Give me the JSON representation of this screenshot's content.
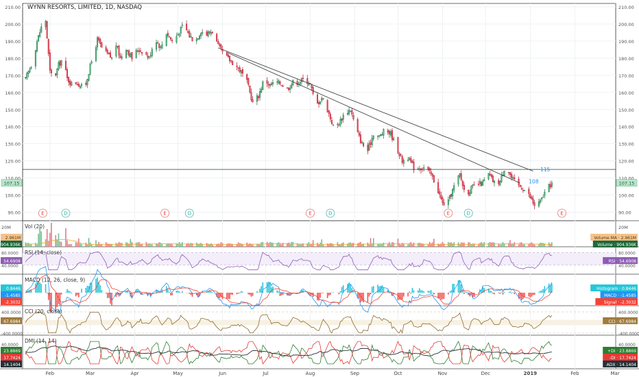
{
  "chart_data": {
    "type": "candlestick",
    "title": "WYNN RESORTS, LIMITED, 1D, NASDAQ",
    "price_axis": {
      "ylim": [
        85,
        212
      ],
      "ticks": [
        90,
        100,
        110,
        120,
        130,
        140,
        150,
        160,
        170,
        180,
        190,
        200,
        210
      ],
      "tick_labels": [
        "90.00",
        "100.00",
        "110.00",
        "120.00",
        "130.00",
        "140.00",
        "150.00",
        "160.00",
        "170.00",
        "180.00",
        "190.00",
        "200.00",
        "210.00"
      ]
    },
    "time_axis": {
      "labels": [
        "Feb",
        "Mar",
        "Apr",
        "May",
        "Jun",
        "Jul",
        "Aug",
        "Sep",
        "Oct",
        "Nov",
        "Dec",
        "2019",
        "Feb",
        "Mar"
      ],
      "label_days": [
        31,
        59,
        90,
        120,
        151,
        181,
        212,
        243,
        273,
        304,
        334,
        365,
        396,
        424
      ]
    },
    "last_price": "107.15",
    "horizontal_line": {
      "value": 115,
      "label": "115"
    },
    "price_marker": {
      "value": 108,
      "label": "108"
    },
    "trendlines": [
      {
        "from": {
          "day": 148,
          "price": 186
        },
        "to": {
          "day": 367,
          "price": 114
        }
      },
      {
        "from": {
          "day": 155,
          "price": 183
        },
        "to": {
          "day": 358,
          "price": 107
        }
      }
    ],
    "events": [
      {
        "type": "E",
        "day": 26
      },
      {
        "type": "D",
        "day": 42
      },
      {
        "type": "E",
        "day": 111
      },
      {
        "type": "D",
        "day": 128
      },
      {
        "type": "E",
        "day": 212
      },
      {
        "type": "D",
        "day": 226
      },
      {
        "type": "E",
        "day": 308
      },
      {
        "type": "D",
        "day": 322
      },
      {
        "type": "E",
        "day": 387
      }
    ],
    "price_path": [
      [
        12,
        163
      ],
      [
        15,
        170
      ],
      [
        19,
        178
      ],
      [
        22,
        190
      ],
      [
        25,
        198
      ],
      [
        28,
        202
      ],
      [
        31,
        172
      ],
      [
        34,
        168
      ],
      [
        37,
        176
      ],
      [
        40,
        180
      ],
      [
        43,
        168
      ],
      [
        46,
        165
      ],
      [
        49,
        166
      ],
      [
        52,
        164
      ],
      [
        55,
        162
      ],
      [
        58,
        172
      ],
      [
        61,
        181
      ],
      [
        64,
        191
      ],
      [
        67,
        186
      ],
      [
        70,
        183
      ],
      [
        74,
        180
      ],
      [
        77,
        188
      ],
      [
        80,
        180
      ],
      [
        84,
        186
      ],
      [
        88,
        180
      ],
      [
        92,
        185
      ],
      [
        96,
        184
      ],
      [
        100,
        180
      ],
      [
        104,
        192
      ],
      [
        108,
        186
      ],
      [
        112,
        195
      ],
      [
        116,
        190
      ],
      [
        120,
        194
      ],
      [
        124,
        200
      ],
      [
        128,
        193
      ],
      [
        132,
        190
      ],
      [
        136,
        196
      ],
      [
        140,
        194
      ],
      [
        144,
        196
      ],
      [
        148,
        187
      ],
      [
        152,
        182
      ],
      [
        156,
        179
      ],
      [
        160,
        176
      ],
      [
        164,
        172
      ],
      [
        168,
        166
      ],
      [
        172,
        154
      ],
      [
        176,
        158
      ],
      [
        180,
        168
      ],
      [
        184,
        164
      ],
      [
        188,
        166
      ],
      [
        192,
        165
      ],
      [
        196,
        162
      ],
      [
        200,
        166
      ],
      [
        204,
        166
      ],
      [
        208,
        168
      ],
      [
        212,
        165
      ],
      [
        216,
        152
      ],
      [
        220,
        157
      ],
      [
        224,
        150
      ],
      [
        228,
        140
      ],
      [
        232,
        142
      ],
      [
        236,
        148
      ],
      [
        240,
        150
      ],
      [
        244,
        138
      ],
      [
        248,
        130
      ],
      [
        252,
        126
      ],
      [
        256,
        136
      ],
      [
        260,
        134
      ],
      [
        264,
        138
      ],
      [
        268,
        136
      ],
      [
        272,
        128
      ],
      [
        276,
        120
      ],
      [
        280,
        122
      ],
      [
        284,
        116
      ],
      [
        288,
        116
      ],
      [
        292,
        116
      ],
      [
        296,
        112
      ],
      [
        300,
        105
      ],
      [
        304,
        95
      ],
      [
        308,
        96
      ],
      [
        312,
        105
      ],
      [
        316,
        112
      ],
      [
        320,
        100
      ],
      [
        324,
        104
      ],
      [
        328,
        106
      ],
      [
        332,
        107
      ],
      [
        336,
        112
      ],
      [
        340,
        107
      ],
      [
        344,
        108
      ],
      [
        348,
        118
      ],
      [
        352,
        110
      ],
      [
        356,
        106
      ],
      [
        360,
        104
      ],
      [
        364,
        100
      ],
      [
        368,
        94
      ],
      [
        372,
        96
      ],
      [
        376,
        103
      ],
      [
        380,
        107
      ]
    ],
    "panels": [
      {
        "name": "Vol (20)",
        "right_labels": [
          "Volume MA · 2.961M",
          "Volume · 904.936K"
        ],
        "left_labels": [
          "20M",
          "2.961M",
          "904.936K"
        ],
        "axis_label": "20M"
      },
      {
        "name": "RSI (14, close)",
        "left_labels": [
          "80.0000",
          "54.6908",
          "40.0000"
        ],
        "right_labels": [
          "RSI · 54.6908"
        ],
        "axis_labels": [
          "80.0000",
          "40.0000"
        ]
      },
      {
        "name": "MACD (12, 26, close, 9)",
        "left_labels": [
          "0.8446",
          "-1.4585",
          "-2.3032"
        ],
        "right_labels": [
          "Histogram · 0.8446",
          "MACD · -1.4585",
          "Signal · -2.3032"
        ]
      },
      {
        "name": "CCI (20, close)",
        "left_labels": [
          "400.0000",
          "67.6984",
          "-400.0000"
        ],
        "right_labels": [
          "CCI · 67.6984"
        ],
        "axis_labels": [
          "400.0000",
          "-400.0000"
        ]
      },
      {
        "name": "DMI (14, 14)",
        "left_labels": [
          "40.0000",
          "23.8869",
          "17.7424",
          "14.1404"
        ],
        "right_labels": [
          "+DI · 23.8869",
          "-DI · 17.7424",
          "ADX · 14.1404"
        ],
        "axis_labels": [
          "40.0000"
        ]
      }
    ],
    "colors": {
      "up": "#53b987",
      "down": "#eb4d5c",
      "up_dark": "#1e6a3b",
      "down_dark": "#b2182b",
      "rsi": "#8e5bb5",
      "macd": "#2196f3",
      "signal": "#f44336",
      "cci": "#8b6a2b",
      "pdi": "#2e7d32",
      "mdi": "#e53935",
      "adx": "#263238",
      "marker_blue": "#2196f3"
    }
  }
}
